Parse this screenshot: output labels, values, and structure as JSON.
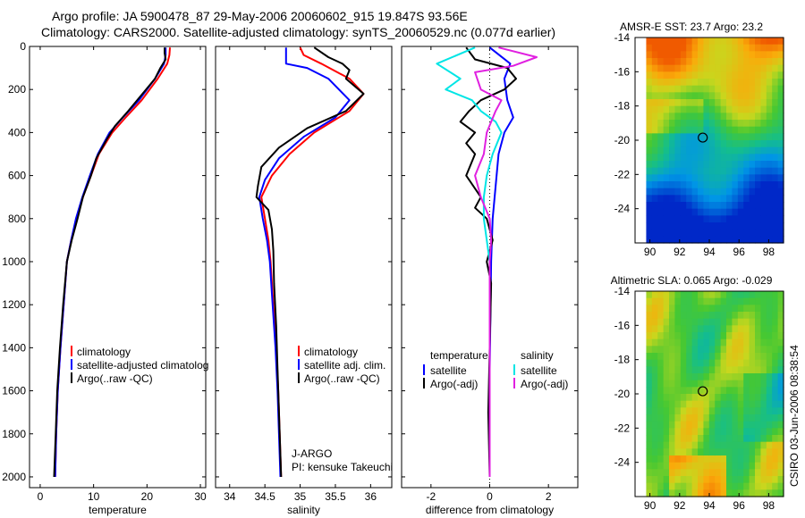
{
  "header": {
    "title_line1": "Argo profile: JA 5900478_87 29-May-2006 20060602_915 19.847S 93.56E",
    "title_line2": "Climatology: CARS2000. Satellite-adjusted climatology: synTS_20060529.nc (0.077d earlier)"
  },
  "credit": "CSIRO 03-Jun-2006 08:38:54",
  "colors": {
    "climatology": "#ff0000",
    "satellite": "#0000ff",
    "argo": "#000000",
    "salinity_satellite": "#00e5e5",
    "salinity_argo": "#e020e0"
  },
  "chart_data": [
    {
      "id": "temperature",
      "type": "line",
      "xlabel": "temperature",
      "xlim": [
        -2,
        31
      ],
      "ylim": [
        0,
        2050
      ],
      "y_reversed": true,
      "xticks": [
        0,
        10,
        20,
        30
      ],
      "yticks": [
        0,
        200,
        400,
        600,
        800,
        1000,
        1200,
        1400,
        1600,
        1800,
        2000
      ],
      "legend": [
        {
          "label": "climatology",
          "color": "#ff0000"
        },
        {
          "label": "satellite-adjusted climatolog",
          "color": "#0000ff"
        },
        {
          "label": "Argo(..raw -QC)",
          "color": "#000000"
        }
      ],
      "series": [
        {
          "name": "climatology",
          "color": "#ff0000",
          "points": [
            [
              24.3,
              5
            ],
            [
              24.2,
              40
            ],
            [
              23.8,
              80
            ],
            [
              22,
              150
            ],
            [
              19,
              250
            ],
            [
              16,
              330
            ],
            [
              13.5,
              400
            ],
            [
              11,
              500
            ],
            [
              9.5,
              600
            ],
            [
              8,
              700
            ],
            [
              6.8,
              800
            ],
            [
              5.8,
              900
            ],
            [
              5,
              1000
            ],
            [
              4.4,
              1200
            ],
            [
              3.8,
              1400
            ],
            [
              3.3,
              1600
            ],
            [
              3,
              1800
            ],
            [
              2.8,
              2000
            ]
          ]
        },
        {
          "name": "satellite-adjusted climatology",
          "color": "#0000ff",
          "points": [
            [
              23.5,
              5
            ],
            [
              23.5,
              40
            ],
            [
              23.2,
              80
            ],
            [
              21.5,
              150
            ],
            [
              18.5,
              250
            ],
            [
              15.5,
              330
            ],
            [
              13,
              400
            ],
            [
              10.8,
              500
            ],
            [
              9.3,
              600
            ],
            [
              7.9,
              700
            ],
            [
              6.7,
              800
            ],
            [
              5.8,
              900
            ],
            [
              5,
              1000
            ],
            [
              4.4,
              1200
            ],
            [
              3.8,
              1400
            ],
            [
              3.3,
              1600
            ],
            [
              3,
              1800
            ],
            [
              2.8,
              2000
            ]
          ]
        },
        {
          "name": "Argo(..raw -QC)",
          "color": "#000000",
          "points": [
            [
              23.3,
              5
            ],
            [
              23.3,
              30
            ],
            [
              23.5,
              60
            ],
            [
              22.5,
              100
            ],
            [
              21.5,
              150
            ],
            [
              19.5,
              210
            ],
            [
              16.5,
              300
            ],
            [
              14,
              370
            ],
            [
              12.5,
              430
            ],
            [
              10.5,
              520
            ],
            [
              9.5,
              600
            ],
            [
              8,
              700
            ],
            [
              7,
              800
            ],
            [
              5.9,
              900
            ],
            [
              5,
              1000
            ],
            [
              4.3,
              1200
            ],
            [
              3.7,
              1400
            ],
            [
              3.2,
              1600
            ],
            [
              2.9,
              1800
            ],
            [
              2.6,
              2000
            ]
          ]
        }
      ]
    },
    {
      "id": "salinity",
      "type": "line",
      "xlabel": "salinity",
      "xlim": [
        33.8,
        36.3
      ],
      "ylim": [
        0,
        2050
      ],
      "y_reversed": true,
      "xticks": [
        34,
        34.5,
        35,
        35.5,
        36
      ],
      "legend": [
        {
          "label": "climatology",
          "color": "#ff0000"
        },
        {
          "label": "satellite adj. clim.",
          "color": "#0000ff"
        },
        {
          "label": "Argo(..raw -QC)",
          "color": "#000000"
        }
      ],
      "annotation": [
        "J-ARGO",
        "PI: kensuke Takeuchi"
      ],
      "series": [
        {
          "name": "climatology",
          "color": "#ff0000",
          "points": [
            [
              35,
              5
            ],
            [
              35.05,
              40
            ],
            [
              35.3,
              80
            ],
            [
              35.7,
              150
            ],
            [
              35.9,
              220
            ],
            [
              35.7,
              300
            ],
            [
              35.2,
              400
            ],
            [
              34.85,
              500
            ],
            [
              34.6,
              600
            ],
            [
              34.45,
              700
            ],
            [
              34.5,
              800
            ],
            [
              34.55,
              900
            ],
            [
              34.58,
              1000
            ],
            [
              34.62,
              1200
            ],
            [
              34.66,
              1400
            ],
            [
              34.69,
              1600
            ],
            [
              34.71,
              1800
            ],
            [
              34.73,
              2000
            ]
          ]
        },
        {
          "name": "satellite adj. clim.",
          "color": "#0000ff",
          "points": [
            [
              34.8,
              5
            ],
            [
              34.8,
              80
            ],
            [
              35.1,
              100
            ],
            [
              35.4,
              150
            ],
            [
              35.7,
              250
            ],
            [
              35.5,
              330
            ],
            [
              35.05,
              420
            ],
            [
              34.7,
              520
            ],
            [
              34.5,
              620
            ],
            [
              34.42,
              700
            ],
            [
              34.47,
              800
            ],
            [
              34.53,
              900
            ],
            [
              34.57,
              1000
            ],
            [
              34.61,
              1200
            ],
            [
              34.65,
              1400
            ],
            [
              34.68,
              1600
            ],
            [
              34.7,
              1800
            ],
            [
              34.72,
              2000
            ]
          ]
        },
        {
          "name": "Argo(..raw -QC)",
          "color": "#000000",
          "points": [
            [
              35.2,
              5
            ],
            [
              35.4,
              50
            ],
            [
              35.6,
              80
            ],
            [
              35.7,
              110
            ],
            [
              35.65,
              150
            ],
            [
              35.9,
              220
            ],
            [
              35.65,
              300
            ],
            [
              35.1,
              380
            ],
            [
              34.7,
              470
            ],
            [
              34.45,
              560
            ],
            [
              34.4,
              650
            ],
            [
              34.38,
              700
            ],
            [
              34.55,
              760
            ],
            [
              34.6,
              850
            ],
            [
              34.62,
              950
            ],
            [
              34.63,
              1100
            ],
            [
              34.66,
              1300
            ],
            [
              34.68,
              1500
            ],
            [
              34.7,
              1700
            ],
            [
              34.72,
              1900
            ],
            [
              34.73,
              2000
            ]
          ]
        }
      ]
    },
    {
      "id": "difference",
      "type": "line",
      "xlabel": "difference from climatology",
      "xlim": [
        -3,
        3
      ],
      "ylim": [
        0,
        2050
      ],
      "y_reversed": true,
      "xticks": [
        -2,
        0,
        2
      ],
      "legend_temperature_title": "temperature",
      "legend_salinity_title": "salinity",
      "legend": [
        {
          "label": "satellite",
          "color": "#0000ff"
        },
        {
          "label": "Argo(-adj)",
          "color": "#000000"
        },
        {
          "label": "satellite",
          "color": "#00e5e5"
        },
        {
          "label": "Argo(-adj)",
          "color": "#e020e0"
        }
      ],
      "series": [
        {
          "name": "temperature satellite",
          "color": "#0000ff",
          "points": [
            [
              0,
              5
            ],
            [
              0.7,
              80
            ],
            [
              0.5,
              150
            ],
            [
              0.6,
              250
            ],
            [
              0.8,
              330
            ],
            [
              0.5,
              400
            ],
            [
              0.3,
              500
            ],
            [
              0.2,
              650
            ],
            [
              0.1,
              800
            ],
            [
              0.05,
              1000
            ],
            [
              0,
              1500
            ],
            [
              0,
              2000
            ]
          ]
        },
        {
          "name": "temperature Argo(-adj)",
          "color": "#000000",
          "points": [
            [
              -0.8,
              5
            ],
            [
              -0.5,
              60
            ],
            [
              0.6,
              100
            ],
            [
              0.9,
              150
            ],
            [
              0.5,
              200
            ],
            [
              -0.3,
              250
            ],
            [
              -0.7,
              300
            ],
            [
              -1,
              350
            ],
            [
              -0.5,
              400
            ],
            [
              -0.8,
              450
            ],
            [
              -0.5,
              500
            ],
            [
              -0.8,
              600
            ],
            [
              -0.3,
              700
            ],
            [
              -0.5,
              750
            ],
            [
              -0.1,
              800
            ],
            [
              0.1,
              900
            ],
            [
              -0.1,
              1000
            ],
            [
              0.05,
              1100
            ],
            [
              0,
              1400
            ],
            [
              -0.05,
              1700
            ],
            [
              0,
              2000
            ]
          ]
        },
        {
          "name": "salinity satellite",
          "color": "#00e5e5",
          "points": [
            [
              -0.5,
              5
            ],
            [
              -1.8,
              80
            ],
            [
              -1,
              150
            ],
            [
              -1.5,
              200
            ],
            [
              -0.6,
              250
            ],
            [
              -0.3,
              300
            ],
            [
              0.2,
              350
            ],
            [
              0.4,
              400
            ],
            [
              0.1,
              500
            ],
            [
              -0.1,
              600
            ],
            [
              -0.2,
              700
            ],
            [
              -0.2,
              800
            ],
            [
              -0.1,
              900
            ],
            [
              0,
              1000
            ],
            [
              0,
              1500
            ],
            [
              0,
              2000
            ]
          ]
        },
        {
          "name": "salinity Argo(-adj)",
          "color": "#e020e0",
          "points": [
            [
              0.3,
              5
            ],
            [
              1.6,
              50
            ],
            [
              0.8,
              90
            ],
            [
              -0.5,
              120
            ],
            [
              -0.3,
              200
            ],
            [
              0.4,
              250
            ],
            [
              0.2,
              300
            ],
            [
              -0.1,
              400
            ],
            [
              -0.2,
              500
            ],
            [
              -0.5,
              600
            ],
            [
              -0.3,
              700
            ],
            [
              0,
              800
            ],
            [
              0.05,
              900
            ],
            [
              0,
              1000
            ],
            [
              0,
              2000
            ]
          ]
        }
      ]
    },
    {
      "id": "sst_map",
      "type": "heatmap",
      "title": "AMSR-E SST: 23.7 Argo: 23.2",
      "xlim": [
        89,
        99
      ],
      "ylim": [
        -26,
        -14
      ],
      "xticks": [
        90,
        92,
        94,
        96,
        98
      ],
      "yticks": [
        -14,
        -16,
        -18,
        -20,
        -22,
        -24
      ],
      "float_lon": 93.56,
      "float_lat": -19.847
    },
    {
      "id": "sla_map",
      "type": "heatmap",
      "title": "Altimetric SLA: 0.065 Argo: -0.029",
      "xlim": [
        89,
        99
      ],
      "ylim": [
        -26,
        -14
      ],
      "xticks": [
        90,
        92,
        94,
        96,
        98
      ],
      "yticks": [
        -14,
        -16,
        -18,
        -20,
        -22,
        -24
      ],
      "float_lon": 93.56,
      "float_lat": -19.847
    }
  ]
}
